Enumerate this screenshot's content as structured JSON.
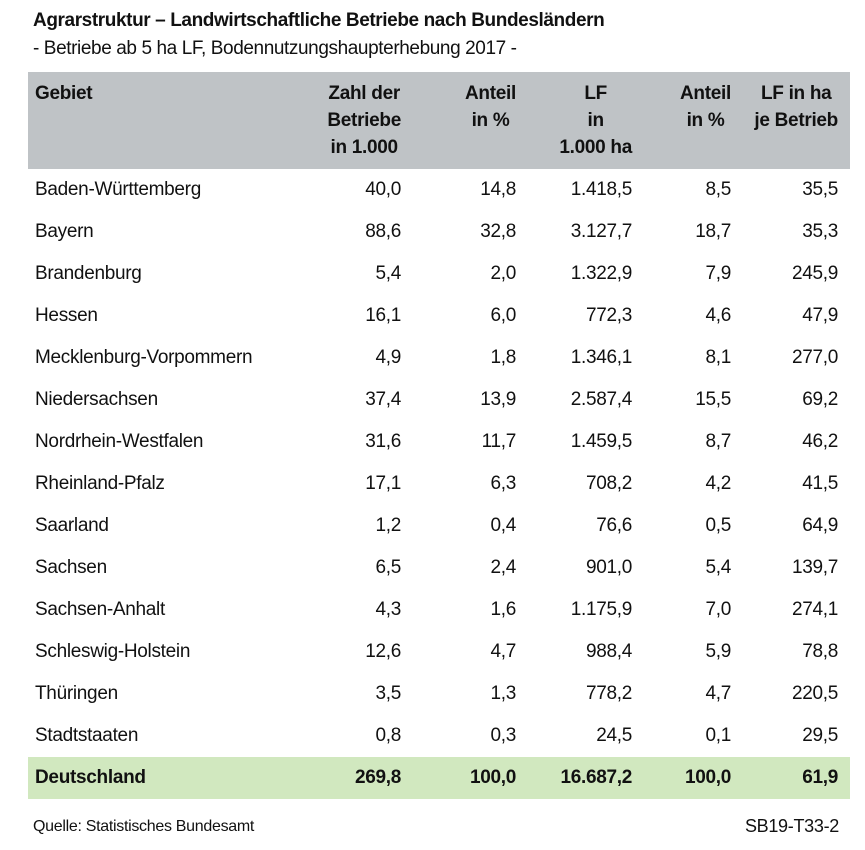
{
  "title": "Agrarstruktur – Landwirtschaftliche Betriebe nach Bundesländern",
  "subtitle": "- Betriebe ab 5 ha LF, Bodennutzungshaupterhebung 2017 -",
  "headers": [
    [
      "Gebiet"
    ],
    [
      "Zahl der",
      "Betriebe",
      "in 1.000"
    ],
    [
      "Anteil",
      "in %"
    ],
    [
      "LF",
      "in",
      "1.000 ha"
    ],
    [
      "Anteil",
      "in %"
    ],
    [
      "LF in ha",
      "je Betrieb"
    ]
  ],
  "rows": [
    [
      "Baden-Württemberg",
      "40,0",
      "14,8",
      "1.418,5",
      "8,5",
      "35,5"
    ],
    [
      "Bayern",
      "88,6",
      "32,8",
      "3.127,7",
      "18,7",
      "35,3"
    ],
    [
      "Brandenburg",
      "5,4",
      "2,0",
      "1.322,9",
      "7,9",
      "245,9"
    ],
    [
      "Hessen",
      "16,1",
      "6,0",
      "772,3",
      "4,6",
      "47,9"
    ],
    [
      "Mecklenburg-Vorpommern",
      "4,9",
      "1,8",
      "1.346,1",
      "8,1",
      "277,0"
    ],
    [
      "Niedersachsen",
      "37,4",
      "13,9",
      "2.587,4",
      "15,5",
      "69,2"
    ],
    [
      "Nordrhein-Westfalen",
      "31,6",
      "11,7",
      "1.459,5",
      "8,7",
      "46,2"
    ],
    [
      "Rheinland-Pfalz",
      "17,1",
      "6,3",
      "708,2",
      "4,2",
      "41,5"
    ],
    [
      "Saarland",
      "1,2",
      "0,4",
      "76,6",
      "0,5",
      "64,9"
    ],
    [
      "Sachsen",
      "6,5",
      "2,4",
      "901,0",
      "5,4",
      "139,7"
    ],
    [
      "Sachsen-Anhalt",
      "4,3",
      "1,6",
      "1.175,9",
      "7,0",
      "274,1"
    ],
    [
      "Schleswig-Holstein",
      "12,6",
      "4,7",
      "988,4",
      "5,9",
      "78,8"
    ],
    [
      "Thüringen",
      "3,5",
      "1,3",
      "778,2",
      "4,7",
      "220,5"
    ],
    [
      "Stadtstaaten",
      "0,8",
      "0,3",
      "24,5",
      "0,1",
      "29,5"
    ]
  ],
  "total": [
    "Deutschland",
    "269,8",
    "100,0",
    "16.687,2",
    "100,0",
    "61,9"
  ],
  "source": "Quelle: Statistisches Bundesamt",
  "code": "SB19-T33-2",
  "colors": {
    "header_bg": "#bfc3c6",
    "total_bg": "#d1e8bf"
  }
}
